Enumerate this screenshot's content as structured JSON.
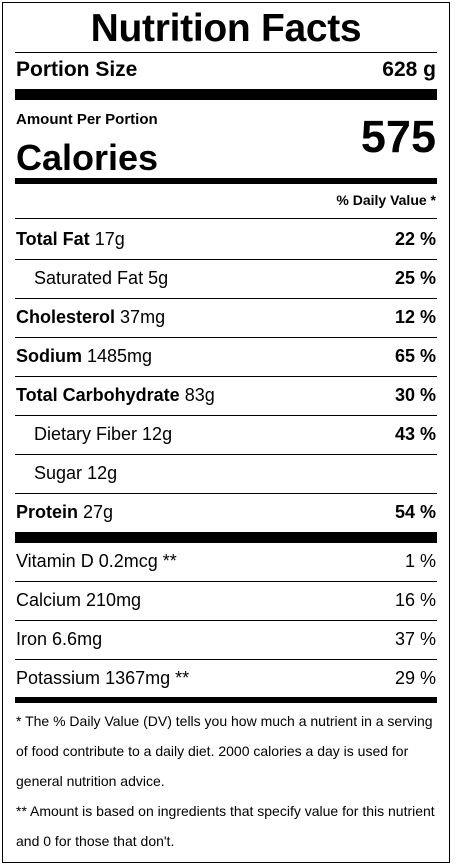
{
  "title": "Nutrition Facts",
  "portion": {
    "label": "Portion Size",
    "value": "628 g"
  },
  "amount_label": "Amount Per Portion",
  "calories": {
    "label": "Calories",
    "value": "575"
  },
  "dv_header": "% Daily Value *",
  "nutrients": [
    {
      "name": "Total Fat",
      "amount": "17g",
      "dv": "22 %"
    },
    {
      "name": "Saturated Fat",
      "amount": "5g",
      "dv": "25 %"
    },
    {
      "name": "Cholesterol",
      "amount": "37mg",
      "dv": "12 %"
    },
    {
      "name": "Sodium",
      "amount": "1485mg",
      "dv": "65 %"
    },
    {
      "name": "Total Carbohydrate",
      "amount": "83g",
      "dv": "30 %"
    },
    {
      "name": "Dietary Fiber",
      "amount": "12g",
      "dv": "43 %"
    },
    {
      "name": "Sugar",
      "amount": "12g",
      "dv": ""
    },
    {
      "name": "Protein",
      "amount": "27g",
      "dv": "54 %"
    }
  ],
  "vitamins": [
    {
      "name": "Vitamin D",
      "amount": "0.2mcg **",
      "dv": "1 %"
    },
    {
      "name": "Calcium",
      "amount": "210mg",
      "dv": "16 %"
    },
    {
      "name": "Iron",
      "amount": "6.6mg",
      "dv": "37 %"
    },
    {
      "name": "Potassium",
      "amount": "1367mg **",
      "dv": "29 %"
    }
  ],
  "footnotes": [
    "* The % Daily Value (DV) tells you how much a nutrient in a serving of food contribute to a daily diet. 2000 calories a day is used for general nutrition advice.",
    "** Amount is based on ingredients that specify value for this nutrient and 0 for those that don't."
  ]
}
